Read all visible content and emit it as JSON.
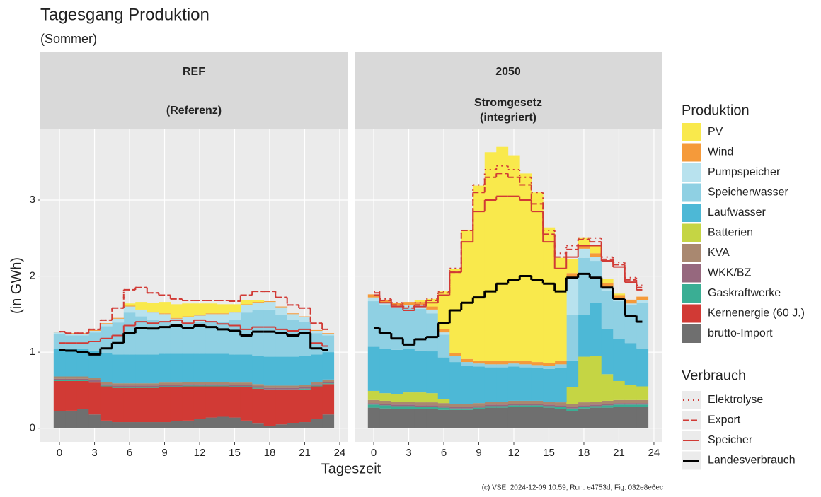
{
  "chart_data": {
    "type": "area",
    "title": "Tagesgang Produktion",
    "subtitle": "(Sommer)",
    "x_label": "Tageszeit",
    "y_label": "(in GWh)",
    "legend_title": "Produktion",
    "lines_legend_title": "Verbrauch",
    "footer": "(c) VSE, 2024-12-09 10:59, Run: e4753d, Fig: 032e8e6ec",
    "facets": [
      {
        "title": "REF",
        "subtitle": [
          "(Referenz)"
        ]
      },
      {
        "title": "2050",
        "subtitle": [
          "Stromgesetz",
          "(integriert)"
        ]
      }
    ],
    "x": [
      0,
      1,
      2,
      3,
      4,
      5,
      6,
      7,
      8,
      9,
      10,
      11,
      12,
      13,
      14,
      15,
      16,
      17,
      18,
      19,
      20,
      21,
      22,
      23
    ],
    "xlim": [
      -1.64,
      24.67
    ],
    "ylim": [
      -0.18,
      3.93
    ],
    "xticks": [
      0,
      3,
      6,
      9,
      12,
      15,
      18,
      21,
      24
    ],
    "yticks": [
      0,
      1,
      2,
      3
    ],
    "grid": true,
    "series": [
      {
        "name": "brutto-Import",
        "color": "#6f6f6f",
        "values": [
          [
            0.22,
            0.23,
            0.25,
            0.18,
            0.1,
            0.08,
            0.08,
            0.08,
            0.08,
            0.08,
            0.09,
            0.1,
            0.12,
            0.14,
            0.15,
            0.14,
            0.1,
            0.06,
            0.03,
            0.05,
            0.07,
            0.08,
            0.12,
            0.18
          ],
          [
            0.27,
            0.26,
            0.25,
            0.25,
            0.25,
            0.25,
            0.24,
            0.24,
            0.24,
            0.25,
            0.27,
            0.27,
            0.28,
            0.28,
            0.28,
            0.27,
            0.25,
            0.22,
            0.26,
            0.27,
            0.27,
            0.28,
            0.28,
            0.28
          ]
        ]
      },
      {
        "name": "Kernenergie (60 J.)",
        "color": "#d13a35",
        "values": [
          [
            0.4,
            0.39,
            0.37,
            0.42,
            0.45,
            0.45,
            0.45,
            0.45,
            0.45,
            0.46,
            0.45,
            0.45,
            0.43,
            0.41,
            0.4,
            0.4,
            0.44,
            0.46,
            0.47,
            0.45,
            0.43,
            0.43,
            0.43,
            0.4
          ],
          [
            0,
            0,
            0,
            0,
            0,
            0,
            0,
            0,
            0,
            0,
            0,
            0,
            0,
            0,
            0,
            0,
            0,
            0,
            0,
            0,
            0,
            0,
            0,
            0
          ]
        ]
      },
      {
        "name": "Gaskraftwerke",
        "color": "#3aae94",
        "values": [
          [
            0.01,
            0.01,
            0.01,
            0.01,
            0.01,
            0.01,
            0.01,
            0.01,
            0.01,
            0.01,
            0.01,
            0.01,
            0.01,
            0.01,
            0.01,
            0.01,
            0.01,
            0.01,
            0.01,
            0.01,
            0.01,
            0.01,
            0.01,
            0.01
          ],
          [
            0.04,
            0.04,
            0.04,
            0.04,
            0.03,
            0.03,
            0.03,
            0.02,
            0.02,
            0.02,
            0.02,
            0.02,
            0.02,
            0.02,
            0.02,
            0.02,
            0.03,
            0.04,
            0.02,
            0.02,
            0.03,
            0.03,
            0.03,
            0.03
          ]
        ]
      },
      {
        "name": "WKK/BZ",
        "color": "#96687e",
        "values": [
          [
            0.02,
            0.02,
            0.02,
            0.02,
            0.02,
            0.02,
            0.02,
            0.02,
            0.02,
            0.02,
            0.02,
            0.02,
            0.02,
            0.02,
            0.02,
            0.02,
            0.02,
            0.02,
            0.02,
            0.02,
            0.02,
            0.02,
            0.02,
            0.02
          ],
          [
            0.02,
            0.02,
            0.02,
            0.02,
            0.02,
            0.02,
            0.02,
            0.02,
            0.02,
            0.02,
            0.02,
            0.02,
            0.02,
            0.02,
            0.02,
            0.02,
            0.02,
            0.02,
            0.02,
            0.02,
            0.02,
            0.02,
            0.02,
            0.02
          ]
        ]
      },
      {
        "name": "KVA",
        "color": "#a98870",
        "values": [
          [
            0.03,
            0.03,
            0.03,
            0.03,
            0.03,
            0.03,
            0.03,
            0.03,
            0.03,
            0.03,
            0.03,
            0.03,
            0.03,
            0.03,
            0.03,
            0.03,
            0.03,
            0.03,
            0.03,
            0.03,
            0.03,
            0.03,
            0.03,
            0.03
          ],
          [
            0.04,
            0.04,
            0.04,
            0.04,
            0.04,
            0.04,
            0.04,
            0.04,
            0.04,
            0.04,
            0.04,
            0.04,
            0.04,
            0.04,
            0.04,
            0.04,
            0.04,
            0.04,
            0.04,
            0.04,
            0.04,
            0.04,
            0.04,
            0.04
          ]
        ]
      },
      {
        "name": "Batterien",
        "color": "#c5d544",
        "values": [
          [
            0,
            0,
            0,
            0,
            0,
            0,
            0,
            0,
            0,
            0,
            0,
            0,
            0,
            0,
            0,
            0,
            0,
            0,
            0,
            0,
            0,
            0,
            0,
            0
          ],
          [
            0.12,
            0.1,
            0.1,
            0.12,
            0.13,
            0.12,
            0.05,
            0,
            0,
            0,
            0,
            0,
            0,
            0,
            0,
            0,
            0,
            0.22,
            0.6,
            0.6,
            0.35,
            0.25,
            0.2,
            0.18
          ]
        ]
      },
      {
        "name": "Laufwasser",
        "color": "#4db8d6",
        "values": [
          [
            0.36,
            0.36,
            0.36,
            0.36,
            0.38,
            0.38,
            0.38,
            0.38,
            0.38,
            0.38,
            0.38,
            0.37,
            0.37,
            0.37,
            0.37,
            0.37,
            0.37,
            0.37,
            0.38,
            0.38,
            0.38,
            0.38,
            0.36,
            0.36
          ],
          [
            0.58,
            0.58,
            0.58,
            0.57,
            0.55,
            0.55,
            0.55,
            0.55,
            0.5,
            0.48,
            0.45,
            0.45,
            0.45,
            0.44,
            0.43,
            0.43,
            0.45,
            0.35,
            0.55,
            0.7,
            0.6,
            0.55,
            0.55,
            0.5
          ]
        ]
      },
      {
        "name": "Speicherwasser",
        "color": "#8fd0e3",
        "values": [
          [
            0.2,
            0.18,
            0.18,
            0.24,
            0.35,
            0.42,
            0.55,
            0.5,
            0.45,
            0.42,
            0.38,
            0.4,
            0.42,
            0.42,
            0.42,
            0.45,
            0.55,
            0.6,
            0.62,
            0.55,
            0.48,
            0.45,
            0.28,
            0.22
          ],
          [
            0.6,
            0.58,
            0.55,
            0.55,
            0.55,
            0.5,
            0.3,
            0.08,
            0.05,
            0.04,
            0.04,
            0.04,
            0.04,
            0.04,
            0.04,
            0.04,
            0.05,
            0.6,
            0.75,
            0.55,
            0.5,
            0.5,
            0.5,
            0.6
          ]
        ]
      },
      {
        "name": "Pumpspeicher",
        "color": "#b8e2ee",
        "values": [
          [
            0.02,
            0.02,
            0.02,
            0.02,
            0.03,
            0.05,
            0.08,
            0.08,
            0.1,
            0.1,
            0.08,
            0.08,
            0.08,
            0.1,
            0.1,
            0.1,
            0.1,
            0.1,
            0.1,
            0.1,
            0.08,
            0.06,
            0.03,
            0.02
          ],
          [
            0.05,
            0.03,
            0.03,
            0.03,
            0.05,
            0.05,
            0.03,
            0,
            0,
            0,
            0,
            0,
            0,
            0,
            0,
            0,
            0,
            0.5,
            0.12,
            0.05,
            0.05,
            0.03,
            0.02,
            0.03
          ]
        ]
      },
      {
        "name": "Wind",
        "color": "#f59a3a",
        "values": [
          [
            0.01,
            0.01,
            0.01,
            0.01,
            0.01,
            0.01,
            0.01,
            0.01,
            0.01,
            0.01,
            0.01,
            0.01,
            0.01,
            0.01,
            0.01,
            0.01,
            0.01,
            0.01,
            0.01,
            0.01,
            0.01,
            0.01,
            0.01,
            0.01
          ],
          [
            0.04,
            0.04,
            0.04,
            0.04,
            0.04,
            0.04,
            0.04,
            0.04,
            0.04,
            0.04,
            0.04,
            0.04,
            0.04,
            0.04,
            0.04,
            0.04,
            0.05,
            0.05,
            0.05,
            0.05,
            0.05,
            0.05,
            0.05,
            0.05
          ]
        ]
      },
      {
        "name": "PV",
        "color": "#f9e94c",
        "values": [
          [
            0,
            0,
            0,
            0,
            0,
            0,
            0.03,
            0.1,
            0.12,
            0.15,
            0.18,
            0.17,
            0.15,
            0.13,
            0.12,
            0.1,
            0.05,
            0.02,
            0,
            0,
            0,
            0,
            0,
            0
          ],
          [
            0,
            0,
            0,
            0,
            0.02,
            0.1,
            0.5,
            1.1,
            1.7,
            2.3,
            2.75,
            2.82,
            2.7,
            2.47,
            2.23,
            1.78,
            1.35,
            0.18,
            0.1,
            0.1,
            0.05,
            0.02,
            0,
            0
          ]
        ]
      }
    ],
    "lines": [
      {
        "name": "Elektrolyse",
        "color": "#d13a35",
        "dash": "2,5",
        "width": 2,
        "values": [
          [
            1.27,
            1.25,
            1.25,
            1.3,
            1.42,
            1.58,
            1.82,
            1.85,
            1.78,
            1.75,
            1.7,
            1.68,
            1.68,
            1.68,
            1.68,
            1.67,
            1.75,
            1.8,
            1.8,
            1.72,
            1.62,
            1.58,
            1.38,
            1.3
          ],
          [
            1.8,
            1.7,
            1.65,
            1.6,
            1.65,
            1.7,
            1.8,
            2.1,
            2.6,
            3.2,
            3.4,
            3.45,
            3.4,
            3.3,
            3.1,
            2.6,
            2.3,
            2.4,
            2.5,
            2.5,
            2.25,
            2.18,
            1.98,
            1.88
          ]
        ]
      },
      {
        "name": "Export",
        "color": "#d13a35",
        "dash": "8,4",
        "width": 2,
        "values": [
          [
            1.27,
            1.25,
            1.25,
            1.3,
            1.42,
            1.58,
            1.82,
            1.85,
            1.78,
            1.75,
            1.7,
            1.68,
            1.68,
            1.68,
            1.68,
            1.67,
            1.75,
            1.8,
            1.8,
            1.72,
            1.62,
            1.58,
            1.38,
            1.3
          ],
          [
            1.78,
            1.68,
            1.62,
            1.58,
            1.62,
            1.68,
            1.78,
            2.05,
            2.6,
            3.1,
            3.3,
            3.35,
            3.3,
            3.2,
            2.95,
            2.55,
            2.25,
            2.35,
            2.48,
            2.45,
            2.22,
            2.15,
            1.95,
            1.85
          ]
        ]
      },
      {
        "name": "Speicher",
        "color": "#d13a35",
        "dash": "none",
        "width": 2,
        "values": [
          [
            1.12,
            1.12,
            1.12,
            1.14,
            1.18,
            1.22,
            1.35,
            1.4,
            1.38,
            1.4,
            1.42,
            1.38,
            1.42,
            1.4,
            1.37,
            1.35,
            1.3,
            1.33,
            1.33,
            1.3,
            1.28,
            1.3,
            1.12,
            1.08
          ],
          [
            1.75,
            1.65,
            1.6,
            1.55,
            1.6,
            1.65,
            1.75,
            2.05,
            2.45,
            2.85,
            3.0,
            3.05,
            3.05,
            3.0,
            2.85,
            2.45,
            2.1,
            2.25,
            2.4,
            2.4,
            2.2,
            2.12,
            1.92,
            1.82
          ]
        ]
      },
      {
        "name": "Landesverbrauch",
        "color": "#000000",
        "dash": "none",
        "width": 3,
        "values": [
          [
            1.03,
            1.02,
            1.0,
            0.97,
            1.05,
            1.12,
            1.25,
            1.32,
            1.31,
            1.33,
            1.35,
            1.32,
            1.35,
            1.33,
            1.3,
            1.28,
            1.22,
            1.27,
            1.27,
            1.25,
            1.22,
            1.25,
            1.05,
            1.03
          ],
          [
            1.32,
            1.25,
            1.18,
            1.1,
            1.17,
            1.2,
            1.38,
            1.55,
            1.65,
            1.72,
            1.8,
            1.9,
            1.95,
            2.0,
            1.95,
            1.9,
            1.8,
            1.98,
            2.03,
            1.98,
            1.85,
            1.7,
            1.48,
            1.4
          ]
        ]
      }
    ]
  }
}
